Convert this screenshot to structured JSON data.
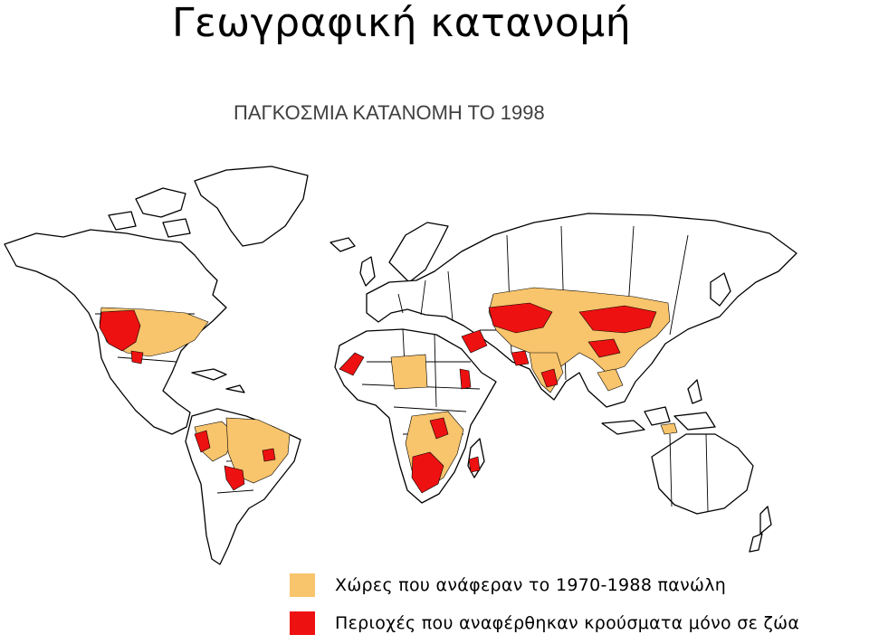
{
  "slide": {
    "title": "Γεωγραφική κατανομή"
  },
  "map": {
    "caption": "ΠΑΓΚΟΣΜΙΑ ΚΑΤΑΝΟΜΗ ΤΟ 1998",
    "land_color": "#ffffff",
    "border_color": "#000000"
  },
  "legend": {
    "items": [
      {
        "label": "Χώρες που ανάφεραν το 1970-1988 πανώλη",
        "color": "#f8c46c"
      },
      {
        "label": "Περιοχές που αναφέρθηκαν κρούσματα μόνο σε ζώα",
        "color": "#ee1111"
      }
    ]
  }
}
